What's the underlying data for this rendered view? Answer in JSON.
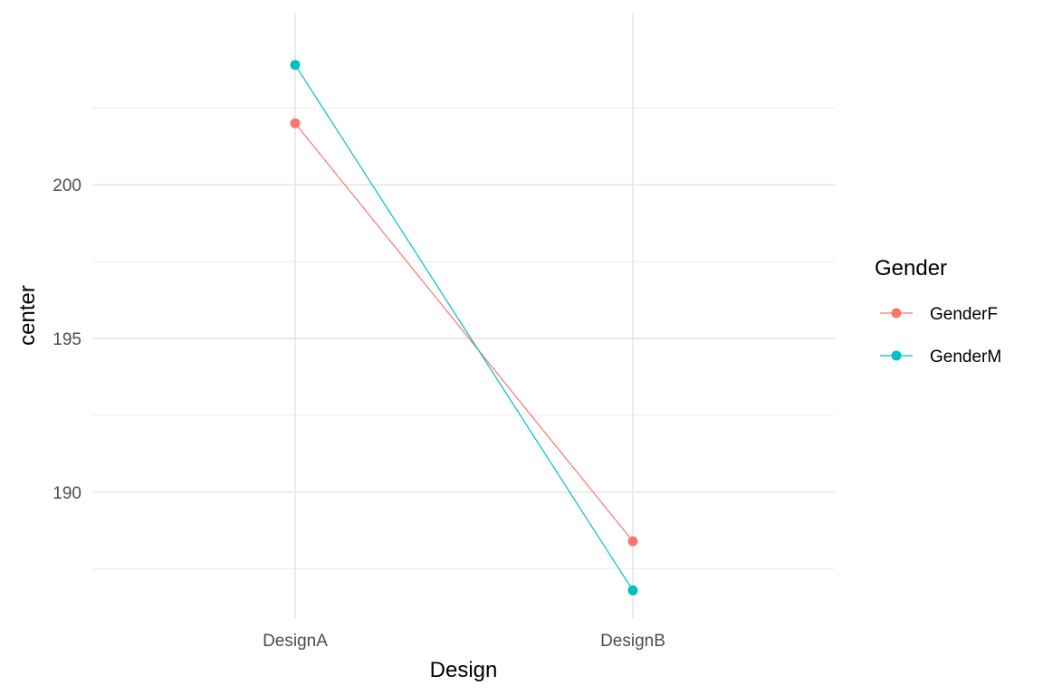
{
  "chart_data": {
    "type": "line",
    "xlabel": "Design",
    "ylabel": "center",
    "categories": [
      "DesignA",
      "DesignB"
    ],
    "ylim": [
      185.9,
      205.6
    ],
    "y_ticks": [
      190,
      195,
      200
    ],
    "y_minor_ticks": [
      187.5,
      192.5,
      197.5,
      202.5
    ],
    "grid": true,
    "legend": {
      "title": "Gender",
      "position": "right"
    },
    "series": [
      {
        "name": "GenderF",
        "color": "#F8766D",
        "values": [
          202.0,
          188.4
        ]
      },
      {
        "name": "GenderM",
        "color": "#00BFC4",
        "values": [
          203.9,
          186.8
        ]
      }
    ]
  }
}
